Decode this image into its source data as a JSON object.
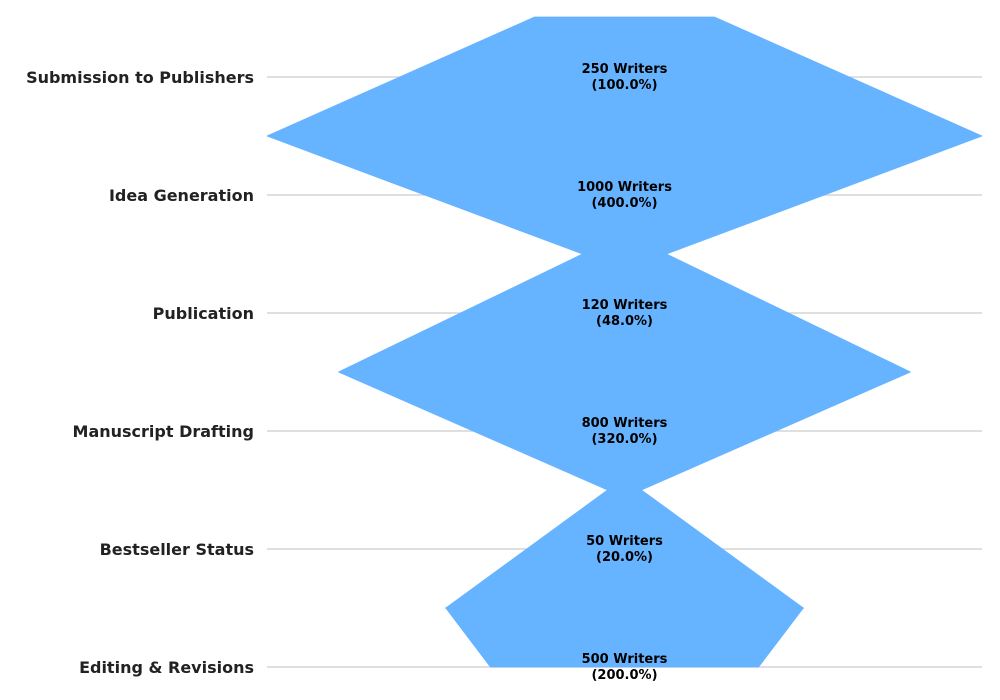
{
  "chart_data": {
    "type": "funnel",
    "categories": [
      "Submission to Publishers",
      "Idea Generation",
      "Publication",
      "Manuscript Drafting",
      "Bestseller Status",
      "Editing & Revisions"
    ],
    "values": [
      250,
      1000,
      120,
      800,
      50,
      500
    ],
    "percentages": [
      100.0,
      400.0,
      48.0,
      320.0,
      20.0,
      200.0
    ],
    "value_labels": [
      [
        "250 Writers",
        "(100.0%)"
      ],
      [
        "1000 Writers",
        "(400.0%)"
      ],
      [
        "120 Writers",
        "(48.0%)"
      ],
      [
        "800 Writers",
        "(320.0%)"
      ],
      [
        "50 Writers",
        "(20.0%)"
      ],
      [
        "500 Writers",
        "(200.0%)"
      ]
    ],
    "fill_color": "#66b3ff",
    "grid": true
  }
}
